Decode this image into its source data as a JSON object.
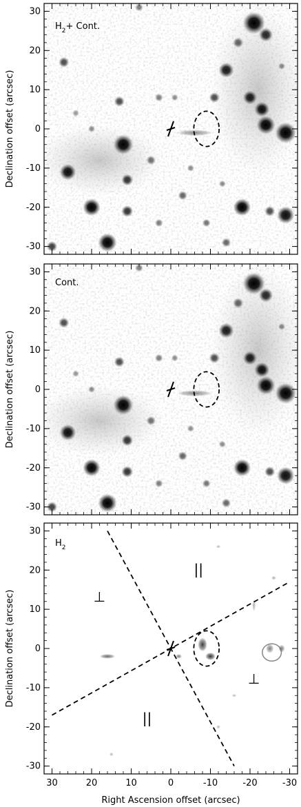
{
  "figure": {
    "xlabel": "Right Ascension offset (arcsec)",
    "ylabel": "Declination offset (arcsec)",
    "xlim": [
      32,
      -32
    ],
    "ylim": [
      -32,
      32
    ],
    "x_ticks": [
      30,
      20,
      10,
      0,
      -10,
      -20,
      -30
    ],
    "x_tick_labels": [
      "30",
      "20",
      "10",
      "0",
      "-10",
      "-20",
      "-30"
    ],
    "y_ticks": [
      -30,
      -20,
      -10,
      0,
      10,
      20,
      30
    ],
    "y_tick_labels": [
      "-30",
      "-20",
      "-10",
      "0",
      "10",
      "20",
      "30"
    ]
  },
  "panels": [
    {
      "id": "h2-plus-cont",
      "label_main": "H",
      "label_sub": "2",
      "label_rest": "+ Cont.",
      "ellipse": {
        "cx": -9,
        "cy": 0,
        "rx": 3.2,
        "ry": 4.5
      },
      "marker": {
        "x": 0,
        "y": 0
      }
    },
    {
      "id": "cont",
      "label_main": "Cont.",
      "label_sub": "",
      "label_rest": "",
      "ellipse": {
        "cx": -9,
        "cy": 0,
        "rx": 3.2,
        "ry": 4.5
      },
      "marker": {
        "x": 0,
        "y": 0
      }
    },
    {
      "id": "h2",
      "label_main": "H",
      "label_sub": "2",
      "label_rest": "",
      "ellipse": {
        "cx": -9,
        "cy": 0,
        "rx": 3.2,
        "ry": 4.5
      },
      "marker": {
        "x": 0,
        "y": 0
      },
      "lines": [
        {
          "from": [
            16,
            30
          ],
          "to": [
            -16,
            -30
          ]
        },
        {
          "from": [
            30,
            -17
          ],
          "to": [
            -30,
            17
          ]
        }
      ],
      "symbols": [
        {
          "text": "⊥",
          "x": 18,
          "y": 12
        },
        {
          "text": "||",
          "x": -7,
          "y": 19
        },
        {
          "text": "⊥",
          "x": -21,
          "y": -9
        },
        {
          "text": "||",
          "x": 6,
          "y": -19
        }
      ]
    }
  ],
  "stars": [
    {
      "x": -21,
      "y": 27,
      "r": 1.9,
      "o": 1.0
    },
    {
      "x": -24,
      "y": 24,
      "r": 1.2,
      "o": 0.85
    },
    {
      "x": -17,
      "y": 22,
      "r": 0.9,
      "o": 0.6
    },
    {
      "x": -14,
      "y": 15,
      "r": 1.3,
      "o": 0.9
    },
    {
      "x": -20,
      "y": 8,
      "r": 1.2,
      "o": 0.9
    },
    {
      "x": -23,
      "y": 5,
      "r": 1.3,
      "o": 0.95
    },
    {
      "x": -24,
      "y": 1,
      "r": 1.6,
      "o": 1.0
    },
    {
      "x": -29,
      "y": -1,
      "r": 1.8,
      "o": 1.0
    },
    {
      "x": -11,
      "y": 8,
      "r": 0.9,
      "o": 0.7
    },
    {
      "x": -18,
      "y": -20,
      "r": 1.5,
      "o": 1.0
    },
    {
      "x": -29,
      "y": -22,
      "r": 1.5,
      "o": 0.95
    },
    {
      "x": -25,
      "y": -21,
      "r": 0.9,
      "o": 0.7
    },
    {
      "x": 12,
      "y": -4,
      "r": 1.7,
      "o": 1.0
    },
    {
      "x": 26,
      "y": -11,
      "r": 1.4,
      "o": 0.95
    },
    {
      "x": 20,
      "y": -20,
      "r": 1.5,
      "o": 1.0
    },
    {
      "x": 16,
      "y": -29,
      "r": 1.6,
      "o": 1.0
    },
    {
      "x": 11,
      "y": -13,
      "r": 1.0,
      "o": 0.8
    },
    {
      "x": 11,
      "y": -21,
      "r": 1.0,
      "o": 0.8
    },
    {
      "x": 3,
      "y": -24,
      "r": 0.7,
      "o": 0.5
    },
    {
      "x": 13,
      "y": 7,
      "r": 0.9,
      "o": 0.7
    },
    {
      "x": 27,
      "y": 17,
      "r": 0.9,
      "o": 0.7
    },
    {
      "x": 5,
      "y": -8,
      "r": 0.8,
      "o": 0.55
    },
    {
      "x": 3,
      "y": 8,
      "r": 0.7,
      "o": 0.5
    },
    {
      "x": -1,
      "y": 8,
      "r": 0.6,
      "o": 0.45
    },
    {
      "x": -3,
      "y": -17,
      "r": 0.8,
      "o": 0.6
    },
    {
      "x": -9,
      "y": -24,
      "r": 0.7,
      "o": 0.55
    },
    {
      "x": -14,
      "y": -29,
      "r": 0.8,
      "o": 0.6
    },
    {
      "x": 30,
      "y": -30,
      "r": 0.9,
      "o": 0.75
    },
    {
      "x": 20,
      "y": 0,
      "r": 0.6,
      "o": 0.45
    },
    {
      "x": -5,
      "y": -10,
      "r": 0.6,
      "o": 0.45
    },
    {
      "x": -13,
      "y": -14,
      "r": 0.6,
      "o": 0.45
    },
    {
      "x": 8,
      "y": 31,
      "r": 0.7,
      "o": 0.5
    },
    {
      "x": -28,
      "y": 16,
      "r": 0.6,
      "o": 0.45
    },
    {
      "x": 24,
      "y": 4,
      "r": 0.6,
      "o": 0.4
    }
  ],
  "h2_blobs": [
    {
      "x": -8,
      "y": 1,
      "rx": 1.2,
      "ry": 1.8,
      "o": 0.9
    },
    {
      "x": -10,
      "y": -2,
      "rx": 1.3,
      "ry": 1.0,
      "o": 0.95
    },
    {
      "x": 16,
      "y": -2,
      "rx": 2.0,
      "ry": 0.6,
      "o": 0.7
    },
    {
      "x": -25,
      "y": 0,
      "rx": 1.0,
      "ry": 1.2,
      "o": 0.6
    },
    {
      "x": -28,
      "y": 0,
      "rx": 0.8,
      "ry": 1.0,
      "o": 0.6
    },
    {
      "x": -2,
      "y": -2,
      "rx": 0.8,
      "ry": 0.6,
      "o": 0.6
    },
    {
      "x": -21,
      "y": 11,
      "rx": 0.4,
      "ry": 1.6,
      "o": 0.4
    },
    {
      "x": -26,
      "y": 18,
      "rx": 0.6,
      "ry": 0.5,
      "o": 0.4
    },
    {
      "x": -12,
      "y": 26,
      "rx": 0.6,
      "ry": 0.4,
      "o": 0.35
    },
    {
      "x": -16,
      "y": -12,
      "rx": 0.6,
      "ry": 0.4,
      "o": 0.35
    },
    {
      "x": -12,
      "y": -20,
      "rx": 0.5,
      "ry": 0.5,
      "o": 0.35
    },
    {
      "x": 15,
      "y": -27,
      "rx": 0.5,
      "ry": 0.5,
      "o": 0.35
    }
  ]
}
